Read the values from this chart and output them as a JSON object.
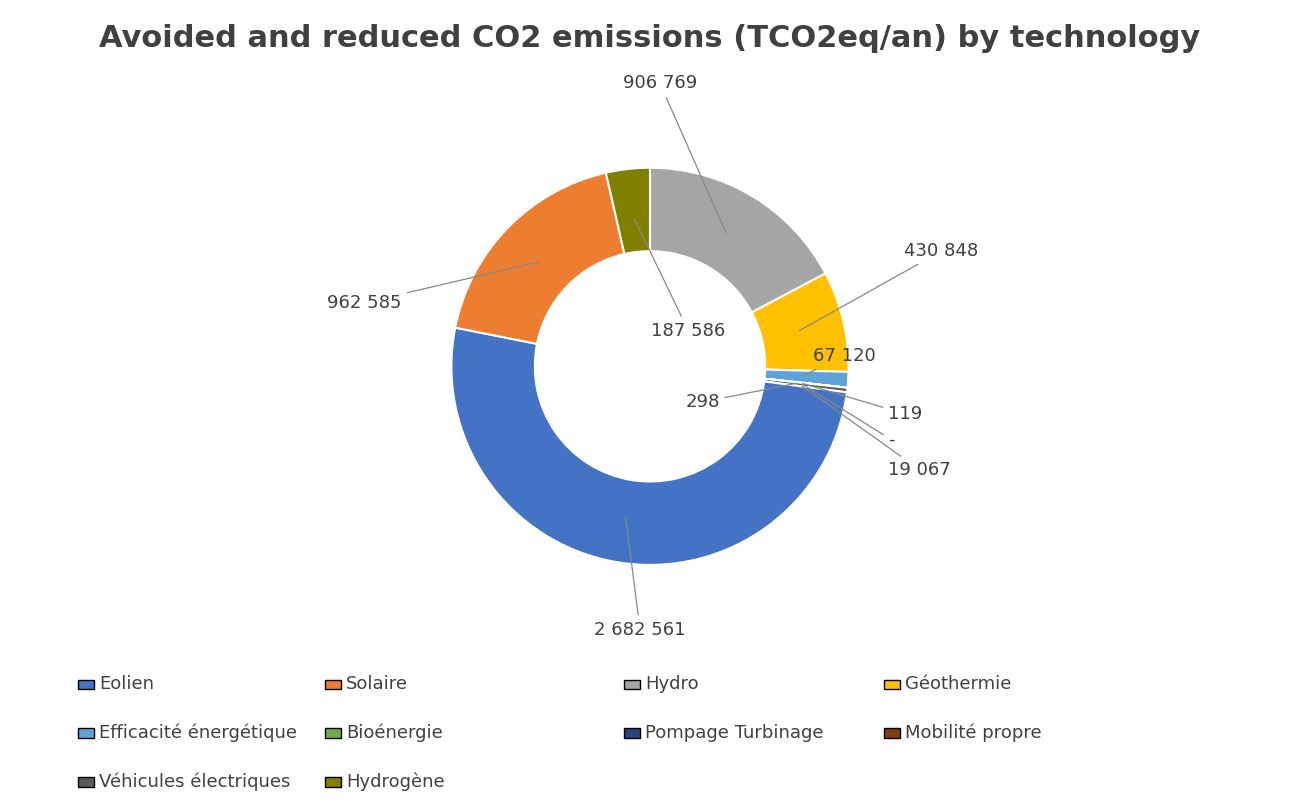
{
  "title": "Avoided and reduced CO2 emissions (TCO2eq/an) by technology",
  "categories": [
    "Eolien",
    "Solaire",
    "Hydro",
    "Géothermie",
    "Efficacité énergétique",
    "Bioénergie",
    "Pompage Turbinage",
    "Mobilité propre",
    "Véhicules électriques",
    "Hydrogène"
  ],
  "values": [
    2682561,
    962585,
    906769,
    430848,
    67120,
    298,
    119,
    1,
    19067,
    187586
  ],
  "labels": [
    "2 682 561",
    "962 585",
    "906 769",
    "430 848",
    "67 120",
    "298",
    "119",
    "-",
    "19 067",
    "187 586"
  ],
  "colors": [
    "#4472C4",
    "#ED7D31",
    "#A5A5A5",
    "#FFC000",
    "#5BA3D9",
    "#70AD47",
    "#264478",
    "#843C0C",
    "#595959",
    "#808000"
  ],
  "legend_order": [
    0,
    1,
    2,
    3,
    4,
    5,
    6,
    7,
    8,
    9
  ],
  "legend_rows": [
    [
      0,
      1,
      2,
      3
    ],
    [
      4,
      5,
      6,
      7
    ],
    [
      8,
      9
    ]
  ],
  "donut_width": 0.42,
  "title_fontsize": 22,
  "label_fontsize": 13,
  "legend_fontsize": 13
}
